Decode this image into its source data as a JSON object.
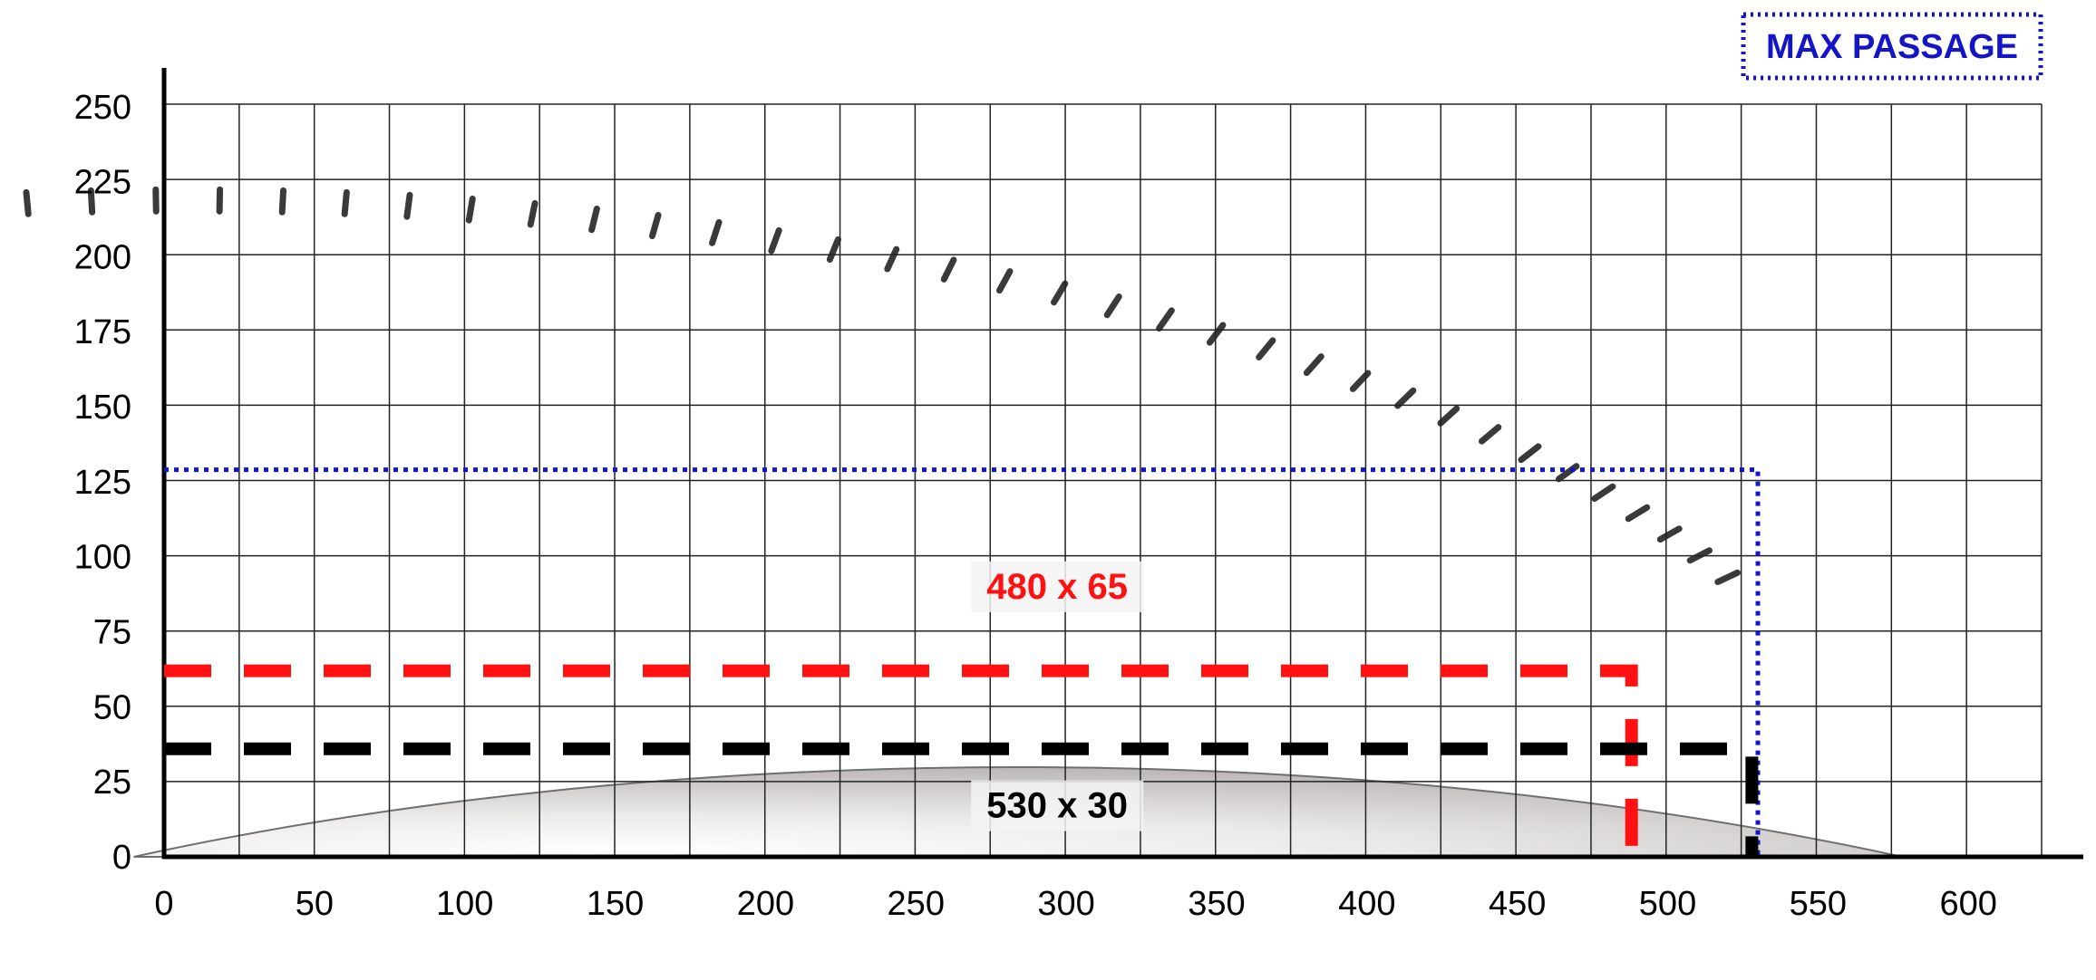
{
  "chart_data": {
    "type": "line",
    "title": "",
    "xlabel": "",
    "ylabel": "",
    "xlim": [
      0,
      630
    ],
    "ylim": [
      0,
      262
    ],
    "x_ticks": [
      0,
      50,
      100,
      150,
      200,
      250,
      300,
      350,
      400,
      450,
      500,
      550,
      600
    ],
    "y_ticks": [
      0,
      25,
      50,
      75,
      100,
      125,
      150,
      175,
      200,
      225,
      250
    ],
    "grid": true,
    "background_image": "circular-saw-blade",
    "legend": {
      "label": "MAX PASSAGE",
      "placement": "top-right",
      "color": "#1515c8"
    },
    "series": [
      {
        "name": "MAX PASSAGE",
        "color": "#1515c8",
        "style": "dotted",
        "x": [
          0,
          530
        ],
        "y": [
          129,
          129
        ],
        "drop_x": 530
      },
      {
        "color": "#ff1111",
        "style": "dashed",
        "x": [
          0,
          488
        ],
        "y": [
          62,
          62
        ],
        "drop_x": 488
      },
      {
        "color": "#000000",
        "style": "dashed",
        "x": [
          0,
          528
        ],
        "y": [
          36,
          36
        ],
        "drop_x": 528
      }
    ],
    "annotations": [
      {
        "text": "480 x 65",
        "color": "#ff1111",
        "x": 297,
        "y": 87
      },
      {
        "text": "530 x 30",
        "color": "#000000",
        "x": 297,
        "y": 14
      }
    ]
  }
}
